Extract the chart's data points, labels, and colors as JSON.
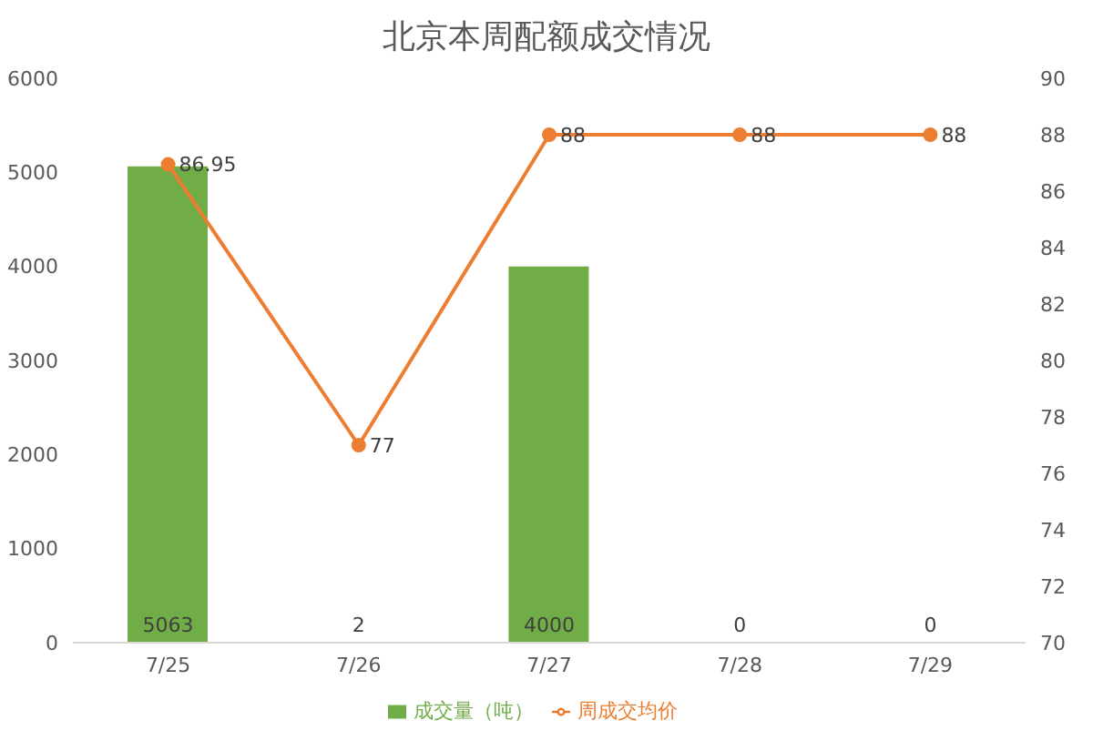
{
  "chart_data": {
    "type": "bar",
    "title": "北京本周配额成交情况",
    "categories": [
      "7/25",
      "7/26",
      "7/27",
      "7/28",
      "7/29"
    ],
    "series": [
      {
        "name": "成交量（吨）",
        "color": "#70ad47",
        "values": [
          5063,
          2,
          4000,
          0,
          0
        ]
      },
      {
        "name": "周成交均价",
        "type": "line",
        "axis": "y2",
        "color": "#ed7d31",
        "values": [
          86.95,
          77,
          88,
          88,
          88
        ]
      }
    ],
    "ylim": [
      0,
      6000
    ],
    "yticks": [
      0,
      1000,
      2000,
      3000,
      4000,
      5000,
      6000
    ],
    "y2lim": [
      70,
      90
    ],
    "y2ticks": [
      70,
      72,
      74,
      76,
      78,
      80,
      82,
      84,
      86,
      88,
      90
    ],
    "legend": "bottom",
    "marker": "circle",
    "line_style": "solid",
    "data_labels": true
  }
}
